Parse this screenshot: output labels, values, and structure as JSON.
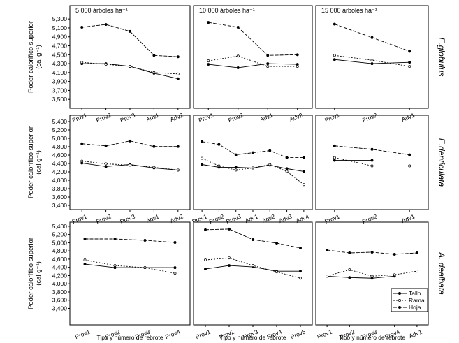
{
  "chart_data": [
    {
      "type": "line",
      "title": "5 000 árboles ha⁻¹",
      "ylabel": [
        "Poder calorífico superior",
        "(cal g⁻¹)"
      ],
      "categories": [
        "Prov1",
        "Prov2",
        "Prov3",
        "Adv1",
        "Adv2"
      ],
      "ylim": [
        3300,
        5600
      ],
      "yticks": [
        {
          "value": 5300,
          "label": "5,300"
        },
        {
          "value": 5100,
          "label": "5,100"
        },
        {
          "value": 4900,
          "label": "4,900"
        },
        {
          "value": 4700,
          "label": "4,700"
        },
        {
          "value": 4500,
          "label": "4,500"
        },
        {
          "value": 4300,
          "label": "4,300"
        },
        {
          "value": 4100,
          "label": "4,100"
        },
        {
          "value": 3900,
          "label": "3,900"
        },
        {
          "value": 3700,
          "label": "3,700"
        },
        {
          "value": 3500,
          "label": "3,500"
        }
      ],
      "series": [
        {
          "name": "Tallo",
          "color": "#000000",
          "line_style": "solid",
          "values": [
            4300,
            4300,
            4240,
            4085,
            3962
          ]
        },
        {
          "name": "Rama",
          "color": "#000000",
          "line_style": "dotted",
          "values": [
            4330,
            4285,
            4240,
            4100,
            4070
          ]
        },
        {
          "name": "Hoja",
          "color": "#000000",
          "line_style": "dashed",
          "values": [
            5115,
            5177,
            5023,
            4485,
            4454
          ]
        }
      ]
    },
    {
      "type": "line",
      "title": "10 000 árboles ha⁻¹",
      "categories": [
        "Prov1",
        "Prov2",
        "Adv1",
        "Adv2"
      ],
      "ylim": [
        3300,
        5600
      ],
      "series": [
        {
          "name": "Tallo",
          "color": "#000000",
          "line_style": "solid",
          "values": [
            4285,
            4208,
            4300,
            4285
          ]
        },
        {
          "name": "Rama",
          "color": "#000000",
          "line_style": "dotted",
          "values": [
            4362,
            4470,
            4238,
            4238
          ]
        },
        {
          "name": "Hoja",
          "color": "#000000",
          "line_style": "dashed",
          "values": [
            5223,
            5115,
            4485,
            4500
          ]
        }
      ]
    },
    {
      "type": "line",
      "title": "15 000 árboles ha⁻¹",
      "row_label": "E.globulus",
      "categories": [
        "Prov1",
        "Prov2",
        "Adv1"
      ],
      "ylim": [
        3300,
        5600
      ],
      "series": [
        {
          "name": "Tallo",
          "color": "#000000",
          "line_style": "solid",
          "values": [
            4392,
            4300,
            4330
          ]
        },
        {
          "name": "Rama",
          "color": "#000000",
          "line_style": "dotted",
          "values": [
            4485,
            4377,
            4238
          ]
        },
        {
          "name": "Hoja",
          "color": "#000000",
          "line_style": "dashed",
          "values": [
            5185,
            4885,
            4577
          ]
        }
      ]
    },
    {
      "type": "line",
      "ylabel": [
        "Poder calorífico superior",
        "(cal g⁻¹)"
      ],
      "categories": [
        "Prov1",
        "Prov2",
        "Prov3",
        "Adv1",
        "Adv2"
      ],
      "ylim": [
        3300,
        5550
      ],
      "yticks": [
        {
          "value": 5400,
          "label": "5,400"
        },
        {
          "value": 5200,
          "label": "5,200"
        },
        {
          "value": 5000,
          "label": "5,000"
        },
        {
          "value": 4800,
          "label": "4,800"
        },
        {
          "value": 4600,
          "label": "4,600"
        },
        {
          "value": 4400,
          "label": "4,400"
        },
        {
          "value": 4200,
          "label": "4,200"
        },
        {
          "value": 4000,
          "label": "4,000"
        },
        {
          "value": 3800,
          "label": "3,800"
        },
        {
          "value": 3600,
          "label": "3,600"
        },
        {
          "value": 3400,
          "label": "3,400"
        }
      ],
      "series": [
        {
          "name": "Tallo",
          "color": "#000000",
          "line_style": "solid",
          "values": [
            4410,
            4326,
            4375,
            4293,
            4243
          ]
        },
        {
          "name": "Rama",
          "color": "#000000",
          "line_style": "dotted",
          "values": [
            4458,
            4392,
            4360,
            4310,
            4243
          ]
        },
        {
          "name": "Hoja",
          "color": "#000000",
          "line_style": "dashed",
          "values": [
            4871,
            4820,
            4937,
            4805,
            4805
          ]
        }
      ]
    },
    {
      "type": "line",
      "categories": [
        "Prov1",
        "Prov2",
        "Prov3",
        "Adv1",
        "Adv2",
        "Adv3",
        "Adv4"
      ],
      "ylim": [
        3300,
        5550
      ],
      "series": [
        {
          "name": "Tallo",
          "color": "#000000",
          "line_style": "solid",
          "values": [
            4375,
            4310,
            4310,
            4293,
            4360,
            4277,
            4210
          ]
        },
        {
          "name": "Rama",
          "color": "#000000",
          "line_style": "dotted",
          "values": [
            4524,
            4342,
            4243,
            4293,
            4375,
            4210,
            3896
          ]
        },
        {
          "name": "Hoja",
          "color": "#000000",
          "line_style": "dashed",
          "values": [
            4920,
            4855,
            4607,
            4657,
            4706,
            4540,
            4540
          ]
        }
      ]
    },
    {
      "type": "line",
      "row_label": "E.denticulata",
      "categories": [
        "Prov1",
        "Prov2",
        "Adv1"
      ],
      "ylim": [
        3300,
        5550
      ],
      "series": [
        {
          "name": "Tallo",
          "color": "#000000",
          "line_style": "solid",
          "values": [
            4474,
            4474,
            null
          ]
        },
        {
          "name": "Rama",
          "color": "#000000",
          "line_style": "dotted",
          "values": [
            4540,
            4342,
            4342
          ]
        },
        {
          "name": "Hoja",
          "color": "#000000",
          "line_style": "dashed",
          "values": [
            4820,
            4738,
            4607
          ]
        }
      ]
    },
    {
      "type": "line",
      "ylabel": [
        "Poder calorífico superior",
        "(cal g⁻¹)"
      ],
      "xlabel": "Tipo y número de rebrote",
      "categories": [
        "Prov1",
        "Prov2",
        "Prov3",
        "Prov4"
      ],
      "ylim": [
        3000,
        5500
      ],
      "yticks": [
        {
          "value": 5400,
          "label": "5,400"
        },
        {
          "value": 5200,
          "label": "5,200"
        },
        {
          "value": 5000,
          "label": "5,000"
        },
        {
          "value": 4800,
          "label": "4,800"
        },
        {
          "value": 4600,
          "label": "4,600"
        },
        {
          "value": 4400,
          "label": "4,400"
        },
        {
          "value": 4200,
          "label": "4,200"
        },
        {
          "value": 4000,
          "label": "4,000"
        },
        {
          "value": 3800,
          "label": "3,800"
        },
        {
          "value": 3600,
          "label": "3,600"
        },
        {
          "value": 3400,
          "label": "3,400"
        }
      ],
      "series": [
        {
          "name": "Tallo",
          "color": "#000000",
          "line_style": "solid",
          "values": [
            4478,
            4393,
            4393,
            4393
          ]
        },
        {
          "name": "Rama",
          "color": "#000000",
          "line_style": "dotted",
          "values": [
            4580,
            4444,
            4393,
            4256
          ]
        },
        {
          "name": "Hoja",
          "color": "#000000",
          "line_style": "dashed",
          "values": [
            5092,
            5092,
            5058,
            5007
          ]
        }
      ]
    },
    {
      "type": "line",
      "xlabel": "Tipo y número de rebrote",
      "categories": [
        "Prov1",
        "Prov2",
        "Prov3",
        "Prov4",
        "Prov5"
      ],
      "ylim": [
        3000,
        5500
      ],
      "series": [
        {
          "name": "Tallo",
          "color": "#000000",
          "line_style": "solid",
          "values": [
            4359,
            4444,
            4410,
            4307,
            4307
          ]
        },
        {
          "name": "Rama",
          "color": "#000000",
          "line_style": "dotted",
          "values": [
            4580,
            4630,
            4444,
            4290,
            4135
          ]
        },
        {
          "name": "Hoja",
          "color": "#000000",
          "line_style": "dashed",
          "values": [
            5315,
            5332,
            5075,
            4990,
            4870
          ]
        }
      ]
    },
    {
      "type": "line",
      "xlabel": "Tipo y número de rebrote",
      "row_label": "A. dealbata",
      "legend": "lower right",
      "categories": [
        "Prov1",
        "Prov2",
        "Prov3",
        "Prov4",
        "Adv1"
      ],
      "ylim": [
        3000,
        5500
      ],
      "series": [
        {
          "name": "Tallo",
          "color": "#000000",
          "line_style": "solid",
          "values": [
            4186,
            4152,
            4135,
            4186,
            null
          ]
        },
        {
          "name": "Rama",
          "color": "#000000",
          "line_style": "dotted",
          "values": [
            4186,
            4342,
            4186,
            4220,
            4307
          ]
        },
        {
          "name": "Hoja",
          "color": "#000000",
          "line_style": "dashed",
          "values": [
            4820,
            4752,
            4769,
            4718,
            4752
          ]
        }
      ]
    }
  ]
}
